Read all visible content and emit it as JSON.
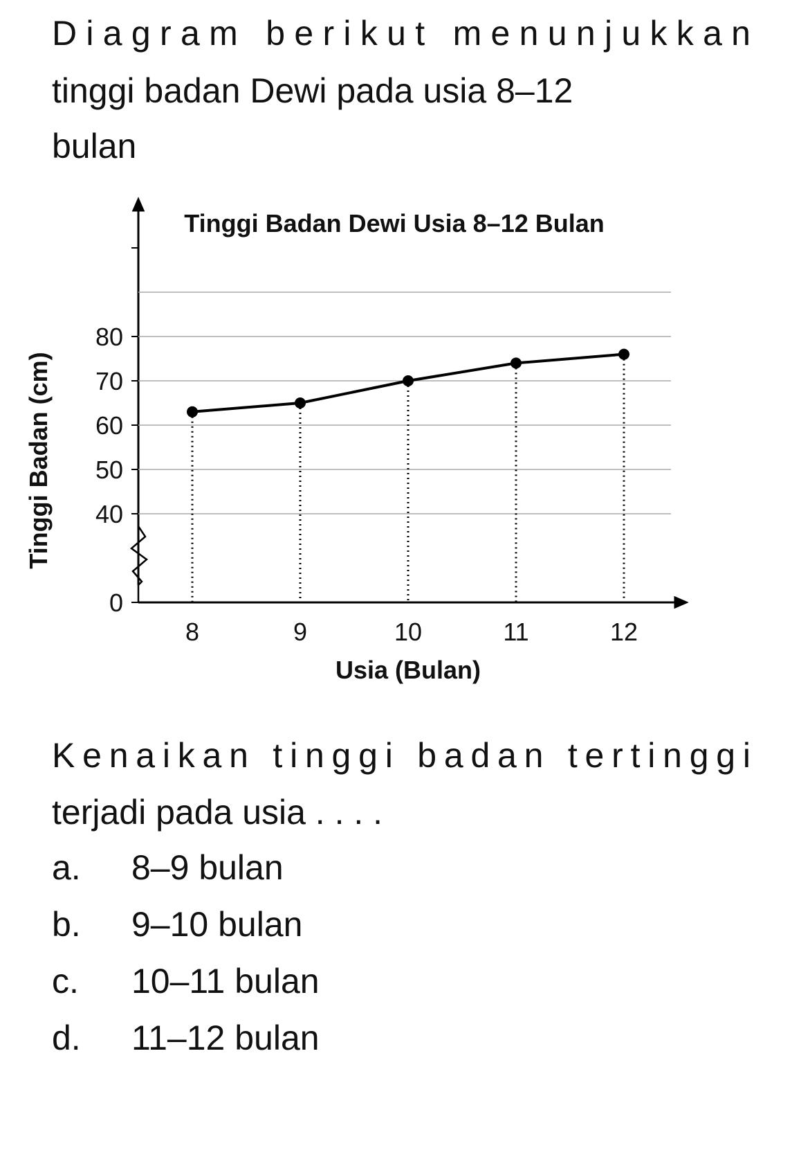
{
  "intro": [
    "Diagram berikut menunjukkan",
    "tinggi badan Dewi pada usia 8–12",
    "bulan"
  ],
  "chart_data": {
    "type": "line",
    "title": "Tinggi Badan Dewi Usia 8–12 Bulan",
    "x_label": "Usia (Bulan)",
    "y_label": "Tinggi Badan (cm)",
    "categories": [
      "8",
      "9",
      "10",
      "11",
      "12"
    ],
    "values": [
      63,
      65,
      70,
      74,
      76
    ],
    "color": "#000000",
    "ylim": [
      0,
      100
    ],
    "yticks": [
      0,
      40,
      50,
      60,
      70,
      80
    ],
    "grid_values": [
      40,
      50,
      60,
      70,
      80,
      90
    ],
    "axis_break": [
      0,
      40
    ],
    "grid": true
  },
  "question": [
    "Kenaikan tinggi badan tertinggi",
    "terjadi pada usia . . . ."
  ],
  "options": [
    {
      "letter": "a.",
      "text": "8–9 bulan"
    },
    {
      "letter": "b.",
      "text": "9–10 bulan"
    },
    {
      "letter": "c.",
      "text": "10–11 bulan"
    },
    {
      "letter": "d.",
      "text": "11–12 bulan"
    }
  ]
}
